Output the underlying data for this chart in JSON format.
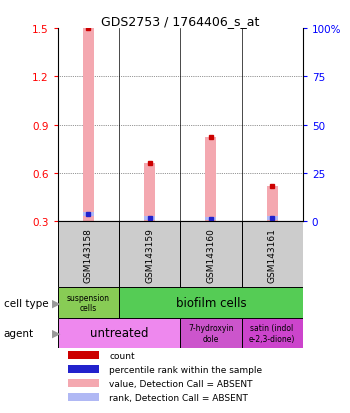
{
  "title": "GDS2753 / 1764406_s_at",
  "samples": [
    "GSM143158",
    "GSM143159",
    "GSM143160",
    "GSM143161"
  ],
  "bar_values": [
    1.5,
    0.66,
    0.82,
    0.52
  ],
  "rank_values": [
    0.345,
    0.32,
    0.315,
    0.32
  ],
  "ylim_left": [
    0.3,
    1.5
  ],
  "yticks_left": [
    0.3,
    0.6,
    0.9,
    1.2,
    1.5
  ],
  "ytick_labels_right": [
    "0",
    "25",
    "50",
    "75",
    "100%"
  ],
  "right_ticks_pos": [
    0.3,
    0.6,
    0.9,
    1.2,
    1.5
  ],
  "bar_color": "#f4a8b0",
  "rank_color": "#b0b8f4",
  "rank_dot_color": "#2222cc",
  "count_dot_color": "#cc0000",
  "bar_width": 0.18,
  "rank_bar_height": 0.02,
  "cell_type_suspension_color": "#88cc55",
  "cell_type_biofilm_color": "#55cc55",
  "agent_untreated_color": "#ee88ee",
  "agent_hydroxy_color": "#cc55cc",
  "agent_satin_color": "#cc44cc",
  "legend_items": [
    {
      "color": "#cc0000",
      "label": "count"
    },
    {
      "color": "#2222cc",
      "label": "percentile rank within the sample"
    },
    {
      "color": "#f4a8b0",
      "label": "value, Detection Call = ABSENT"
    },
    {
      "color": "#b0b8f4",
      "label": "rank, Detection Call = ABSENT"
    }
  ],
  "bg_white": "#ffffff",
  "bg_plot": "#ffffff",
  "sample_box_color": "#cccccc",
  "grid_color": "#333333"
}
